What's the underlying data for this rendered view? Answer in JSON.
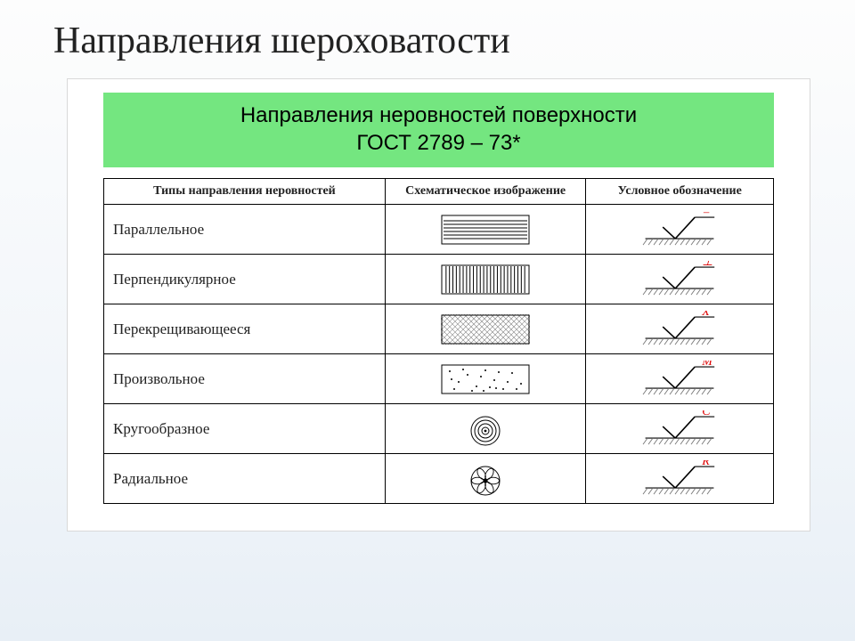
{
  "page_title": "Направления шероховатости",
  "banner_line1": "Направления неровностей поверхности",
  "banner_line2": "ГОСТ 2789 – 73*",
  "table": {
    "headers": [
      "Типы направления неровностей",
      "Схематическое изображение",
      "Условное обозначение"
    ],
    "rows": [
      {
        "label": "Параллельное",
        "schematic": "parallel",
        "sym_text": "=",
        "sym_color": "#d00"
      },
      {
        "label": "Перпендикулярное",
        "schematic": "perp",
        "sym_text": "⊥",
        "sym_color": "#d00"
      },
      {
        "label": "Перекрещивающееся",
        "schematic": "cross",
        "sym_text": "X",
        "sym_color": "#d00"
      },
      {
        "label": "Произвольное",
        "schematic": "random",
        "sym_text": "M",
        "sym_color": "#d00"
      },
      {
        "label": "Кругообразное",
        "schematic": "circular",
        "sym_text": "C",
        "sym_color": "#d00"
      },
      {
        "label": "Радиальное",
        "schematic": "radial",
        "sym_text": "R",
        "sym_color": "#d00"
      }
    ]
  },
  "svg": {
    "schematic_box": {
      "w": 100,
      "h": 34,
      "stroke": "#000",
      "fill": "#fff"
    },
    "symbol_box": {
      "w": 120,
      "h": 42
    },
    "hatch_color": "#666"
  }
}
